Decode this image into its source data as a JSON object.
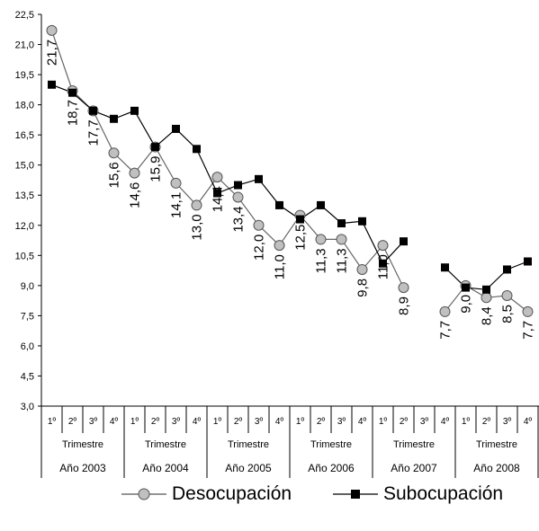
{
  "chart_data": {
    "type": "line",
    "ylim": [
      3.0,
      22.5
    ],
    "y_ticks": [
      "3,0",
      "4,5",
      "6,0",
      "7,5",
      "9,0",
      "10,5",
      "12,0",
      "13,5",
      "15,0",
      "16,5",
      "18,0",
      "19,5",
      "21,0",
      "22,5"
    ],
    "quarter_labels": [
      "1º",
      "2º",
      "3º",
      "4º",
      "1º",
      "2º",
      "3º",
      "4º",
      "1º",
      "2º",
      "3º",
      "4º",
      "1º",
      "2º",
      "3º",
      "4º",
      "1º",
      "2º",
      "3º",
      "4º",
      "1º",
      "2º",
      "3º",
      "4º"
    ],
    "trimestre_labels": [
      "Trimestre",
      "Trimestre",
      "Trimestre",
      "Trimestre",
      "Trimestre",
      "Trimestre"
    ],
    "year_labels": [
      "Año 2003",
      "Año 2004",
      "Año 2005",
      "Año 2006",
      "Año 2007",
      "Año 2008"
    ],
    "series": [
      {
        "name": "Desocupación",
        "marker": "circle",
        "color": "#c0c0c0",
        "values": [
          21.7,
          18.7,
          17.7,
          15.6,
          14.6,
          15.9,
          14.1,
          13.0,
          14.4,
          13.4,
          12.0,
          11.0,
          12.5,
          11.3,
          11.3,
          9.8,
          11.0,
          8.9,
          null,
          7.7,
          9.0,
          8.4,
          8.5,
          7.7
        ]
      },
      {
        "name": "Subocupación",
        "marker": "square",
        "color": "#000000",
        "values": [
          19.0,
          18.6,
          17.7,
          17.3,
          17.7,
          15.9,
          16.8,
          15.8,
          13.6,
          14.0,
          14.3,
          13.0,
          12.3,
          13.0,
          12.1,
          12.2,
          10.1,
          11.2,
          null,
          9.9,
          8.9,
          8.8,
          9.8,
          10.2
        ]
      }
    ],
    "data_labels": [
      "21,7",
      "18,7",
      "17,7",
      "15,6",
      "14,6",
      "15,9",
      "14,1",
      "13,0",
      "14,4",
      "13,4",
      "12,0",
      "11,0",
      "12,5",
      "11,3",
      "11,3",
      "9,8",
      "11,0",
      "8,9",
      "",
      "7,7",
      "9,0",
      "8,4",
      "8,5",
      "7,7"
    ],
    "grid": false,
    "legend_position": "bottom"
  }
}
